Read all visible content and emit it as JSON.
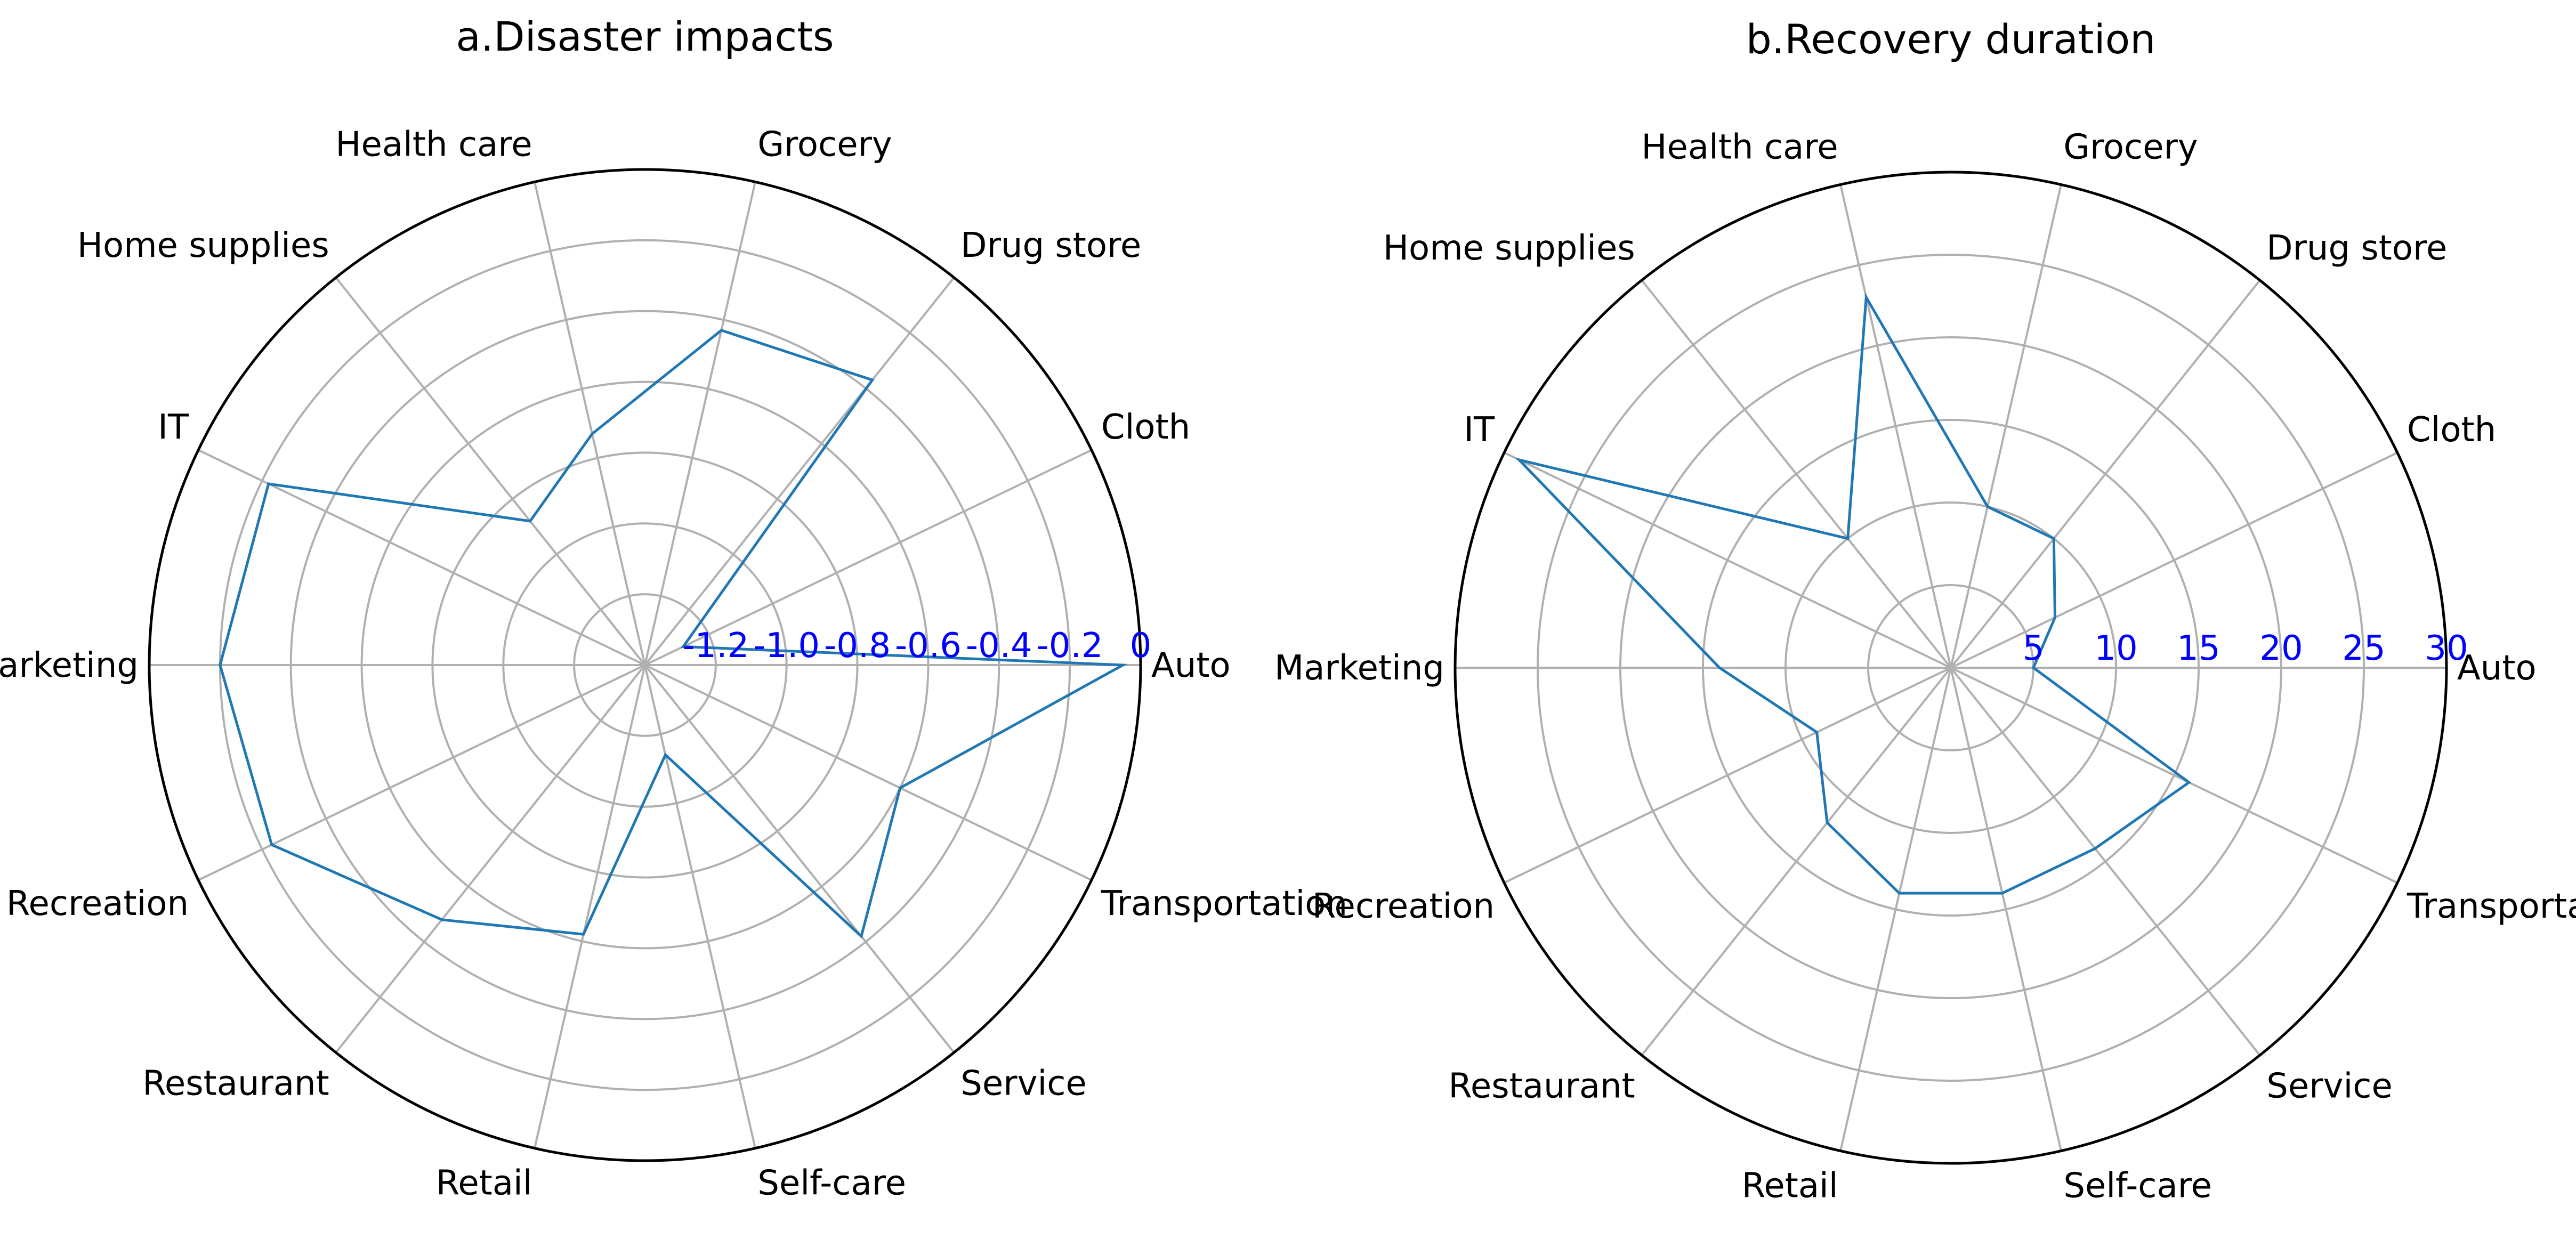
{
  "chart_data": [
    {
      "type": "radar",
      "title": "a.Disaster impacts",
      "categories": [
        "Auto",
        "Cloth",
        "Drug store",
        "Grocery",
        "Health care",
        "Home supplies",
        "IT",
        "Marketing",
        "Recreation",
        "Restaurant",
        "Retail",
        "Self-care",
        "Service",
        "Transportation"
      ],
      "series": [
        {
          "values": [
            -0.05,
            -1.28,
            -0.37,
            -0.43,
            -0.73,
            -0.88,
            -0.22,
            -0.2,
            -0.23,
            -0.48,
            -0.62,
            -1.14,
            -0.42,
            -0.6
          ]
        }
      ],
      "rlim": [
        -1.4,
        0
      ],
      "ticks": [
        -1.2,
        -1.0,
        -0.8,
        -0.6,
        -0.4,
        -0.2,
        0
      ],
      "tick_labels": [
        "-1.2",
        "-1.0",
        "-0.8",
        "-0.6",
        "-0.4",
        "-0.2",
        "0"
      ],
      "grid": true
    },
    {
      "type": "radar",
      "title": "b.Recovery duration",
      "categories": [
        "Auto",
        "Cloth",
        "Drug store",
        "Grocery",
        "Health care",
        "Home supplies",
        "IT",
        "Marketing",
        "Recreation",
        "Restaurant",
        "Retail",
        "Self-care",
        "Service",
        "Transportation"
      ],
      "series": [
        {
          "values": [
            5,
            7,
            10,
            10,
            23,
            10,
            29,
            14,
            9,
            12,
            14,
            14,
            14,
            16
          ]
        }
      ],
      "rlim": [
        0,
        30
      ],
      "ticks": [
        5,
        10,
        15,
        20,
        25,
        30
      ],
      "tick_labels": [
        "5",
        "10",
        "15",
        "20",
        "25",
        "30"
      ],
      "grid": true
    }
  ],
  "colors": {
    "series": "#1f77b4",
    "tick_labels": "#0000ff",
    "grid": "#b0b0b0",
    "outer_ring": "#000000"
  }
}
